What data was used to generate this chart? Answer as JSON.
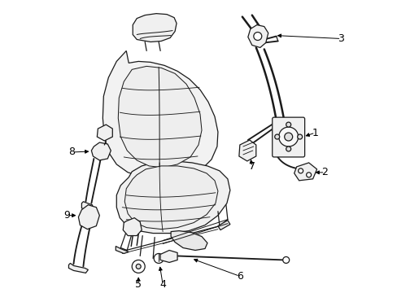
{
  "background_color": "#ffffff",
  "line_color": "#1a1a1a",
  "label_color": "#000000",
  "fig_width": 4.89,
  "fig_height": 3.6,
  "dpi": 100,
  "label_fontsize": 9,
  "line_width": 0.9,
  "fill_color": "#f5f5f5",
  "white": "#ffffff"
}
